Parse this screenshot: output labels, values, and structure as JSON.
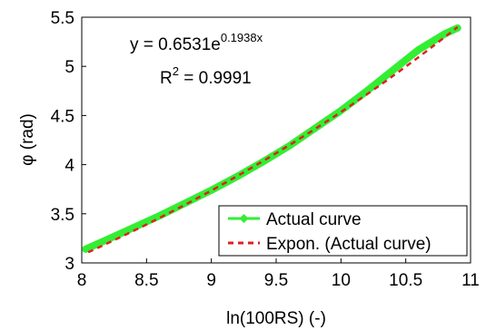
{
  "chart_data": {
    "type": "line",
    "xlabel": "ln(100RS) (-)",
    "ylabel": "φ (rad)",
    "xlim": [
      8,
      11
    ],
    "ylim": [
      3,
      5.5
    ],
    "xticks": [
      "8",
      "8.5",
      "9",
      "9.5",
      "10",
      "10.5",
      "11"
    ],
    "yticks": [
      "3",
      "3.5",
      "4",
      "4.5",
      "5",
      "5.5"
    ],
    "grid": false,
    "legend_position": "bottom-right",
    "annotations": {
      "equation": {
        "prefix": "y = 0.6531e",
        "exponent": "0.1938x"
      },
      "r2": {
        "prefix": "R",
        "superscript": "2",
        "suffix": " = 0.9991"
      }
    },
    "series": [
      {
        "name": "Actual curve",
        "style": "solid line with diamond markers",
        "color": "#33ee33",
        "x": [
          8.03,
          8.2,
          8.4,
          8.6,
          8.8,
          9.0,
          9.2,
          9.4,
          9.6,
          9.8,
          10.0,
          10.2,
          10.4,
          10.6,
          10.8,
          10.9
        ],
        "y": [
          3.14,
          3.24,
          3.36,
          3.48,
          3.61,
          3.74,
          3.88,
          4.03,
          4.19,
          4.37,
          4.55,
          4.75,
          4.96,
          5.17,
          5.33,
          5.39
        ]
      },
      {
        "name": "Expon. (Actual curve)",
        "style": "dashed trendline",
        "color": "#e02020",
        "function": {
          "a": 0.6531,
          "b": 0.1938
        },
        "x": [
          8.05,
          10.9
        ]
      }
    ]
  }
}
